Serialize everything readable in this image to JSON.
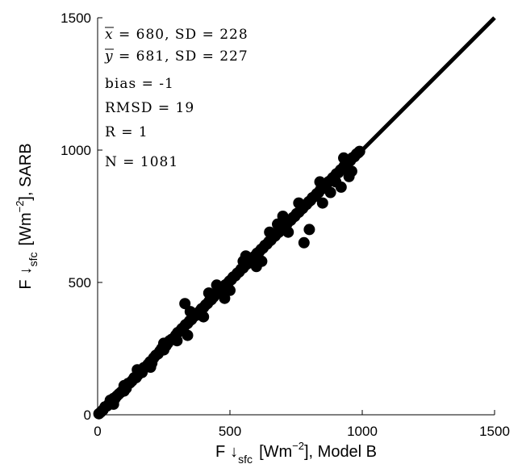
{
  "chart_data": {
    "type": "scatter",
    "title": "",
    "xlabel": {
      "prefix": "F",
      "arrow": "↓",
      "sub": "sfc",
      "pre_unit": "[Wm",
      "sup": "−2",
      "post_unit": "], Model B"
    },
    "ylabel": {
      "prefix": "F",
      "arrow": "↓",
      "sub": "sfc",
      "pre_unit": "[Wm",
      "sup": "−2",
      "post_unit": "], SARB"
    },
    "xlim": [
      0,
      1500
    ],
    "ylim": [
      0,
      1500
    ],
    "xticks": [
      "0",
      "500",
      "1000",
      "1500"
    ],
    "yticks": [
      "0",
      "500",
      "1000",
      "1500"
    ],
    "grid": false,
    "reference_line": {
      "x": [
        0,
        1500
      ],
      "y": [
        0,
        1500
      ]
    },
    "annotations": {
      "xbar": {
        "sym": "x",
        "text": " = 680, SD = 228"
      },
      "ybar": {
        "sym": "y",
        "text": " = 681, SD = 227"
      },
      "bias": "bias = -1",
      "rmsd": "RMSD = 19",
      "r": "R = 1",
      "n": "N = 1081"
    },
    "series": [
      {
        "points": [
          [
            5,
            4
          ],
          [
            12,
            10
          ],
          [
            20,
            18
          ],
          [
            28,
            30
          ],
          [
            35,
            33
          ],
          [
            42,
            40
          ],
          [
            48,
            55
          ],
          [
            55,
            50
          ],
          [
            60,
            62
          ],
          [
            65,
            60
          ],
          [
            72,
            70
          ],
          [
            80,
            78
          ],
          [
            88,
            85
          ],
          [
            95,
            92
          ],
          [
            100,
            110
          ],
          [
            108,
            100
          ],
          [
            115,
            118
          ],
          [
            122,
            120
          ],
          [
            130,
            128
          ],
          [
            138,
            140
          ],
          [
            145,
            140
          ],
          [
            152,
            150
          ],
          [
            160,
            165
          ],
          [
            168,
            160
          ],
          [
            175,
            178
          ],
          [
            182,
            180
          ],
          [
            190,
            190
          ],
          [
            198,
            200
          ],
          [
            205,
            195
          ],
          [
            212,
            215
          ],
          [
            220,
            225
          ],
          [
            228,
            230
          ],
          [
            235,
            240
          ],
          [
            242,
            250
          ],
          [
            250,
            245
          ],
          [
            258,
            260
          ],
          [
            265,
            270
          ],
          [
            272,
            280
          ],
          [
            280,
            285
          ],
          [
            288,
            290
          ],
          [
            295,
            300
          ],
          [
            302,
            310
          ],
          [
            310,
            315
          ],
          [
            318,
            325
          ],
          [
            325,
            330
          ],
          [
            330,
            420
          ],
          [
            332,
            340
          ],
          [
            340,
            345
          ],
          [
            348,
            355
          ],
          [
            355,
            360
          ],
          [
            362,
            370
          ],
          [
            370,
            375
          ],
          [
            378,
            385
          ],
          [
            385,
            390
          ],
          [
            392,
            400
          ],
          [
            400,
            405
          ],
          [
            408,
            415
          ],
          [
            415,
            420
          ],
          [
            422,
            430
          ],
          [
            430,
            435
          ],
          [
            438,
            445
          ],
          [
            445,
            455
          ],
          [
            452,
            460
          ],
          [
            460,
            465
          ],
          [
            468,
            475
          ],
          [
            475,
            480
          ],
          [
            482,
            490
          ],
          [
            490,
            495
          ],
          [
            498,
            505
          ],
          [
            505,
            510
          ],
          [
            512,
            520
          ],
          [
            520,
            525
          ],
          [
            528,
            535
          ],
          [
            535,
            540
          ],
          [
            542,
            550
          ],
          [
            550,
            555
          ],
          [
            558,
            565
          ],
          [
            565,
            570
          ],
          [
            572,
            580
          ],
          [
            580,
            585
          ],
          [
            588,
            595
          ],
          [
            595,
            600
          ],
          [
            602,
            610
          ],
          [
            610,
            615
          ],
          [
            618,
            625
          ],
          [
            625,
            630
          ],
          [
            632,
            640
          ],
          [
            640,
            645
          ],
          [
            648,
            655
          ],
          [
            655,
            660
          ],
          [
            662,
            670
          ],
          [
            670,
            675
          ],
          [
            678,
            685
          ],
          [
            685,
            690
          ],
          [
            692,
            700
          ],
          [
            700,
            705
          ],
          [
            708,
            715
          ],
          [
            715,
            720
          ],
          [
            722,
            730
          ],
          [
            730,
            735
          ],
          [
            738,
            745
          ],
          [
            745,
            750
          ],
          [
            752,
            760
          ],
          [
            760,
            765
          ],
          [
            768,
            775
          ],
          [
            775,
            780
          ],
          [
            782,
            790
          ],
          [
            790,
            795
          ],
          [
            798,
            805
          ],
          [
            805,
            810
          ],
          [
            812,
            820
          ],
          [
            820,
            825
          ],
          [
            828,
            835
          ],
          [
            835,
            840
          ],
          [
            842,
            850
          ],
          [
            850,
            855
          ],
          [
            858,
            865
          ],
          [
            865,
            870
          ],
          [
            872,
            880
          ],
          [
            880,
            885
          ],
          [
            888,
            895
          ],
          [
            895,
            900
          ],
          [
            902,
            910
          ],
          [
            910,
            915
          ],
          [
            918,
            925
          ],
          [
            925,
            930
          ],
          [
            932,
            940
          ],
          [
            940,
            945
          ],
          [
            948,
            955
          ],
          [
            955,
            960
          ],
          [
            962,
            970
          ],
          [
            970,
            975
          ],
          [
            978,
            985
          ],
          [
            985,
            990
          ],
          [
            990,
            995
          ],
          [
            780,
            650
          ],
          [
            800,
            700
          ],
          [
            850,
            800
          ],
          [
            900,
            880
          ],
          [
            920,
            860
          ],
          [
            950,
            900
          ],
          [
            700,
            750
          ],
          [
            650,
            690
          ],
          [
            600,
            560
          ],
          [
            550,
            580
          ],
          [
            500,
            470
          ],
          [
            450,
            490
          ],
          [
            400,
            370
          ],
          [
            350,
            390
          ],
          [
            300,
            280
          ],
          [
            250,
            270
          ],
          [
            200,
            180
          ],
          [
            150,
            170
          ],
          [
            100,
            90
          ],
          [
            60,
            40
          ],
          [
            340,
            300
          ],
          [
            420,
            460
          ],
          [
            480,
            440
          ],
          [
            560,
            600
          ],
          [
            620,
            580
          ],
          [
            680,
            720
          ],
          [
            720,
            690
          ],
          [
            760,
            800
          ],
          [
            840,
            880
          ],
          [
            880,
            840
          ],
          [
            930,
            970
          ],
          [
            960,
            920
          ]
        ]
      }
    ]
  }
}
